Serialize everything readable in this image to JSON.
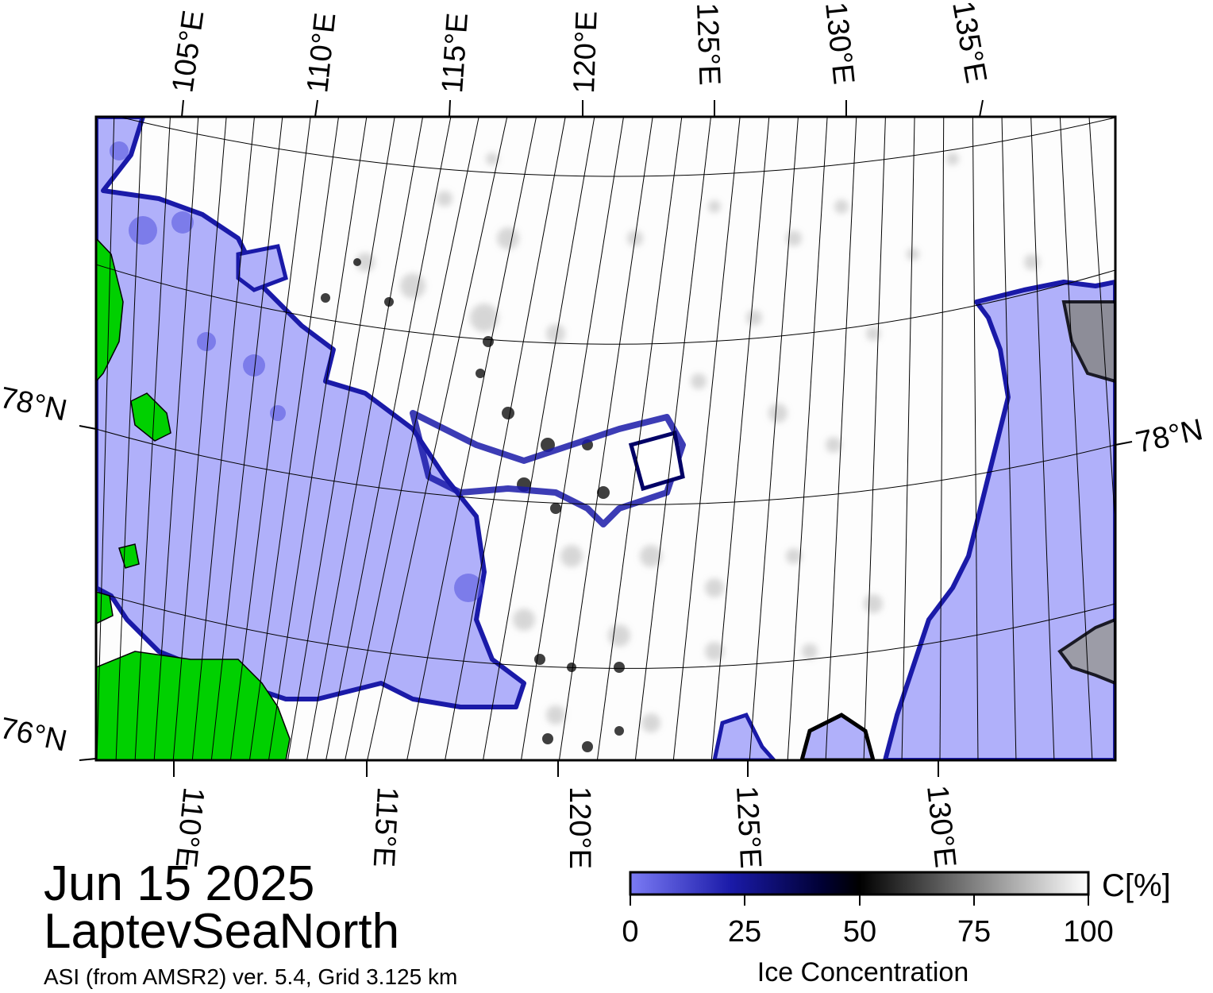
{
  "title": {
    "date": "Jun 15 2025",
    "region": "LaptevSeaNorth",
    "subtitle": "ASI (from AMSR2) ver. 5.4,  Grid 3.125 km"
  },
  "legend": {
    "title": "Ice Concentration",
    "unit": "C[%]",
    "ticks": [
      "0",
      "25",
      "50",
      "75",
      "100"
    ],
    "tick_values": [
      0,
      25,
      50,
      75,
      100
    ],
    "colors": [
      "#7b7bf5",
      "#1a1aa8",
      "#000033",
      "#000000",
      "#808080",
      "#ffffff"
    ]
  },
  "axes": {
    "top_labels": [
      "105°E",
      "110°E",
      "115°E",
      "120°E",
      "125°E",
      "130°E",
      "135°E"
    ],
    "bottom_labels": [
      "110°E",
      "115°E",
      "120°E",
      "125°E",
      "130°E"
    ],
    "left_labels": [
      "78°N",
      "76°N"
    ],
    "right_labels": [
      "78°N"
    ]
  },
  "colors": {
    "open_water": "#b0b0fa",
    "land": "#00d000",
    "ice": "#ffffff",
    "ice_edge": "#1a1aa8",
    "grid": "#000000"
  }
}
